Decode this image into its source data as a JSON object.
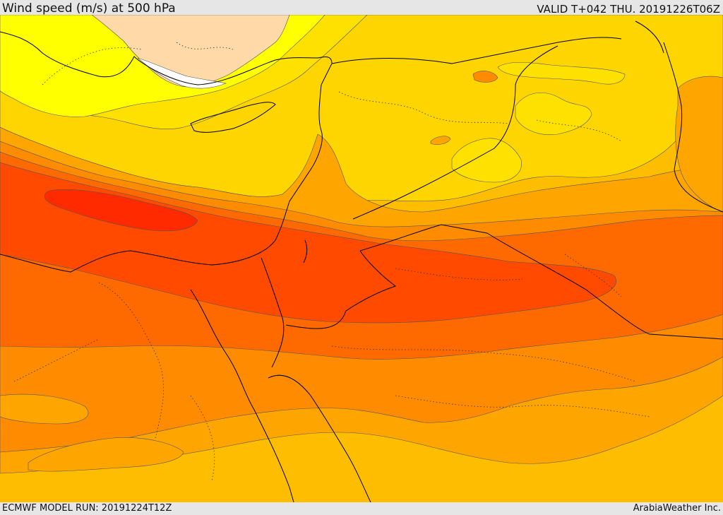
{
  "header": {
    "title": "Wind speed (m/s) at 500 hPa",
    "valid": "VALID T+042 THU. 20191226T06Z"
  },
  "footer": {
    "model_run": "ECMWF MODEL RUN: 20191224T12Z",
    "credit": "ArabiaWeather Inc."
  },
  "colors": {
    "background_band": "#ffbd00",
    "band_1": "#ffd500",
    "band_2": "#ffe100",
    "band_3": "#ffff00",
    "band_4": "#ffdaa8",
    "band_5": "#ffffff",
    "band_6": "#ffa500",
    "band_7": "#ff8c00",
    "band_8": "#ff6a00",
    "band_9": "#ff4a00",
    "band_10": "#ff2a00"
  }
}
